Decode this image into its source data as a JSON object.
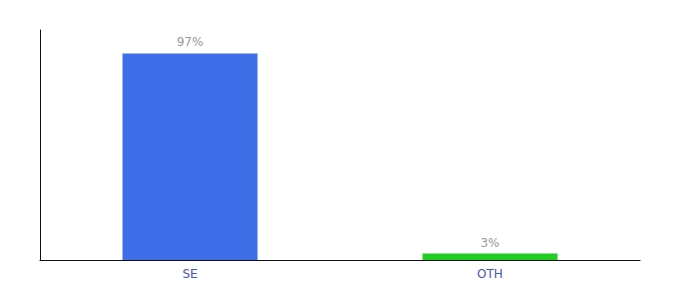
{
  "chart_data": {
    "type": "bar",
    "categories": [
      "SE",
      "OTH"
    ],
    "values": [
      97,
      3
    ],
    "value_labels": [
      "97%",
      "3%"
    ],
    "colors": [
      "#3d6ee8",
      "#22cc22"
    ],
    "ylim": [
      0,
      108
    ],
    "yticks": [],
    "grid": false,
    "data_labels": true,
    "tick_labels": "x"
  }
}
